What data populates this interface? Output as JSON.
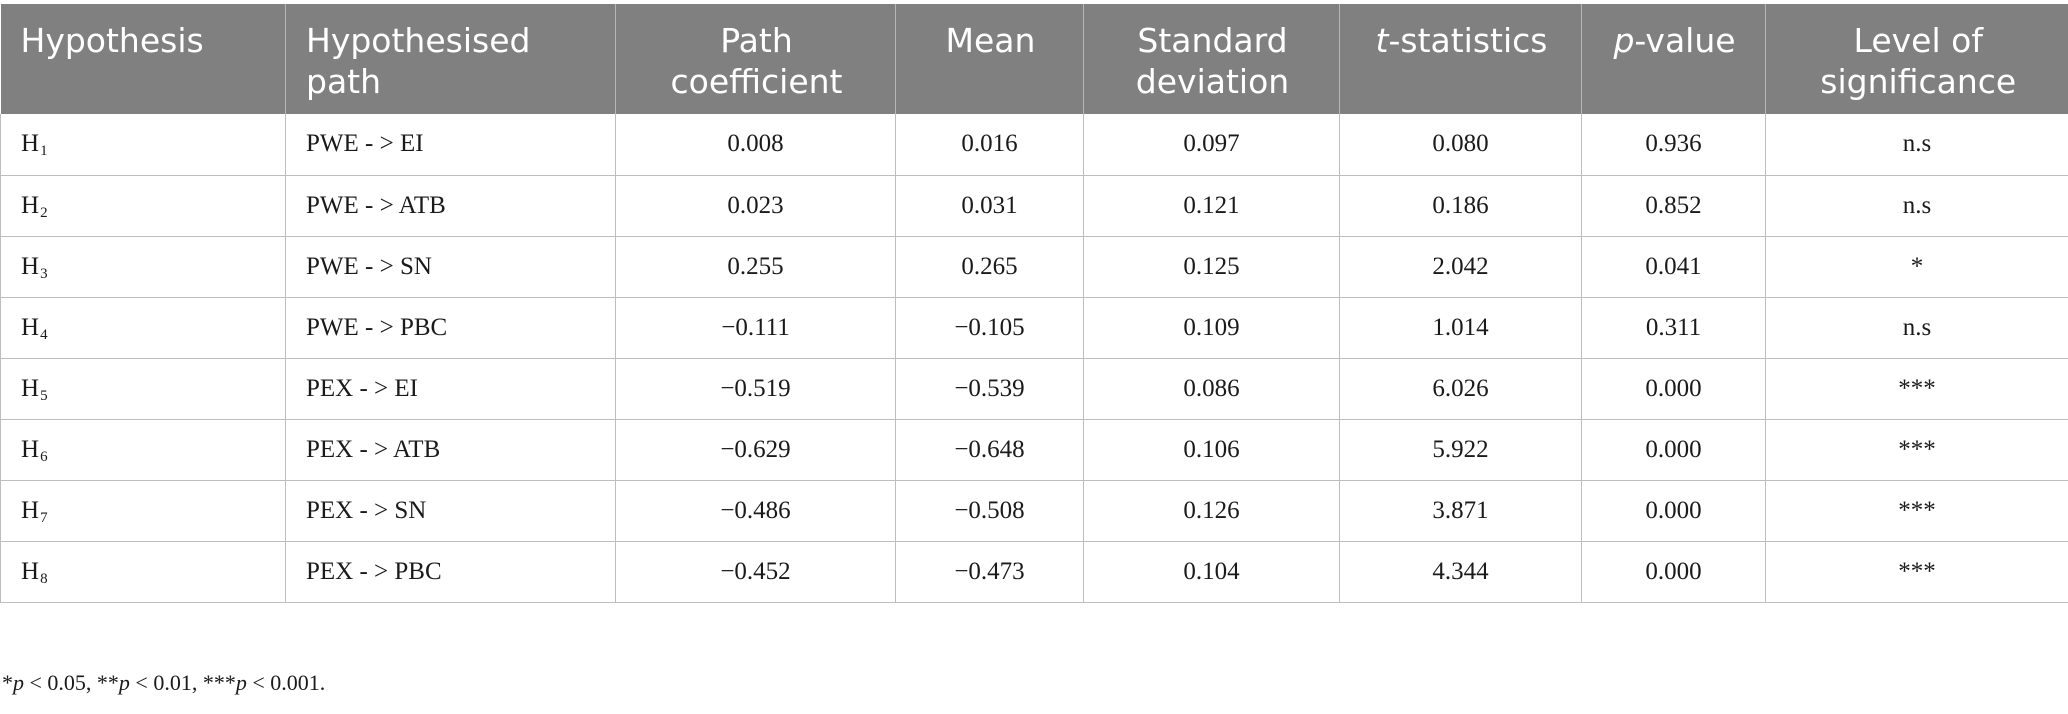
{
  "table": {
    "headers": [
      {
        "key": "hypothesis",
        "label": "Hypothesis",
        "italic_prefix": "",
        "align": "left"
      },
      {
        "key": "path",
        "label": "Hypothesised path",
        "italic_prefix": "",
        "align": "left"
      },
      {
        "key": "coef",
        "label": "Path coefficient",
        "italic_prefix": "",
        "align": "center"
      },
      {
        "key": "mean",
        "label": "Mean",
        "italic_prefix": "",
        "align": "center"
      },
      {
        "key": "sd",
        "label": "Standard deviation",
        "italic_prefix": "",
        "align": "center"
      },
      {
        "key": "tstat",
        "label": "-statistics",
        "italic_prefix": "t",
        "align": "center"
      },
      {
        "key": "pval",
        "label": "-value",
        "italic_prefix": "p",
        "align": "center"
      },
      {
        "key": "sig",
        "label": "Level of significance",
        "italic_prefix": "",
        "align": "center"
      }
    ],
    "rows": [
      {
        "hyp_letter": "H",
        "hyp_sub": "1",
        "path": "PWE - > EI",
        "coef": "0.008",
        "mean": "0.016",
        "sd": "0.097",
        "tstat": "0.080",
        "pval": "0.936",
        "sig": "n.s"
      },
      {
        "hyp_letter": "H",
        "hyp_sub": "2",
        "path": "PWE - > ATB",
        "coef": "0.023",
        "mean": "0.031",
        "sd": "0.121",
        "tstat": "0.186",
        "pval": "0.852",
        "sig": "n.s"
      },
      {
        "hyp_letter": "H",
        "hyp_sub": "3",
        "path": "PWE - > SN",
        "coef": "0.255",
        "mean": "0.265",
        "sd": "0.125",
        "tstat": "2.042",
        "pval": "0.041",
        "sig": "*"
      },
      {
        "hyp_letter": "H",
        "hyp_sub": "4",
        "path": "PWE - > PBC",
        "coef": "−0.111",
        "mean": "−0.105",
        "sd": "0.109",
        "tstat": "1.014",
        "pval": "0.311",
        "sig": "n.s"
      },
      {
        "hyp_letter": "H",
        "hyp_sub": "5",
        "path": "PEX - > EI",
        "coef": "−0.519",
        "mean": "−0.539",
        "sd": "0.086",
        "tstat": "6.026",
        "pval": "0.000",
        "sig": "***"
      },
      {
        "hyp_letter": "H",
        "hyp_sub": "6",
        "path": "PEX - > ATB",
        "coef": "−0.629",
        "mean": "−0.648",
        "sd": "0.106",
        "tstat": "5.922",
        "pval": "0.000",
        "sig": "***"
      },
      {
        "hyp_letter": "H",
        "hyp_sub": "7",
        "path": "PEX - > SN",
        "coef": "−0.486",
        "mean": "−0.508",
        "sd": "0.126",
        "tstat": "3.871",
        "pval": "0.000",
        "sig": "***"
      },
      {
        "hyp_letter": "H",
        "hyp_sub": "8",
        "path": "PEX - > PBC",
        "coef": "−0.452",
        "mean": "−0.473",
        "sd": "0.104",
        "tstat": "4.344",
        "pval": "0.000",
        "sig": "***"
      }
    ]
  },
  "footnote": {
    "parts": [
      {
        "text": "*",
        "italic": false
      },
      {
        "text": "p",
        "italic": true
      },
      {
        "text": " < 0.05, **",
        "italic": false
      },
      {
        "text": "p",
        "italic": true
      },
      {
        "text": " < 0.01, ***",
        "italic": false
      },
      {
        "text": "p",
        "italic": true
      },
      {
        "text": " < 0.001.",
        "italic": false
      }
    ]
  },
  "colors": {
    "header_bg": "#808080",
    "header_text": "#ffffff",
    "grid": "#bdbdbd",
    "body_text": "#1a1a1a"
  }
}
